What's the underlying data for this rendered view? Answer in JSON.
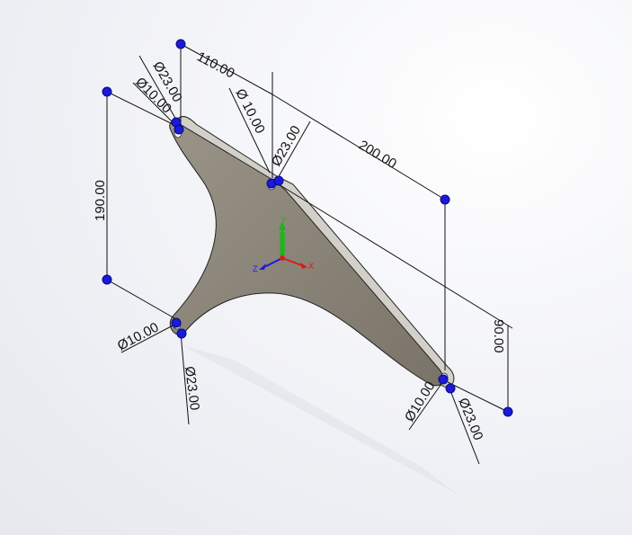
{
  "model": {
    "part_fill": "#888175",
    "part_edge_fill": "#d2d0c8",
    "background_top": "#ffffff",
    "background_bottom": "#e6e8ee",
    "handle_color": "#1a1adb"
  },
  "dimensions": {
    "d_110": "110.00",
    "d_200": "200.00",
    "d_190": "190.00",
    "d_90": "90.00",
    "d_hole_tl_outer": "Ø23.00",
    "d_hole_tl_inner": "Ø10.00",
    "d_hole_tm_inner": "Ø 10.00",
    "d_hole_tm_outer": "Ø23.00",
    "d_hole_bl_inner": "Ø10.00",
    "d_hole_bl_outer": "Ø23.00",
    "d_hole_br_inner": "Ø10.00",
    "d_hole_br_outer": "Ø23.00"
  },
  "triad": {
    "x_label": "X",
    "y_label": "Y",
    "z_label": "Z",
    "x_color": "#d91a1a",
    "y_color": "#1bb31b",
    "z_color": "#1a1adb",
    "x_icon": "x-axis-arrow-icon",
    "y_icon": "y-axis-arrow-icon",
    "z_icon": "z-axis-arrow-icon"
  }
}
